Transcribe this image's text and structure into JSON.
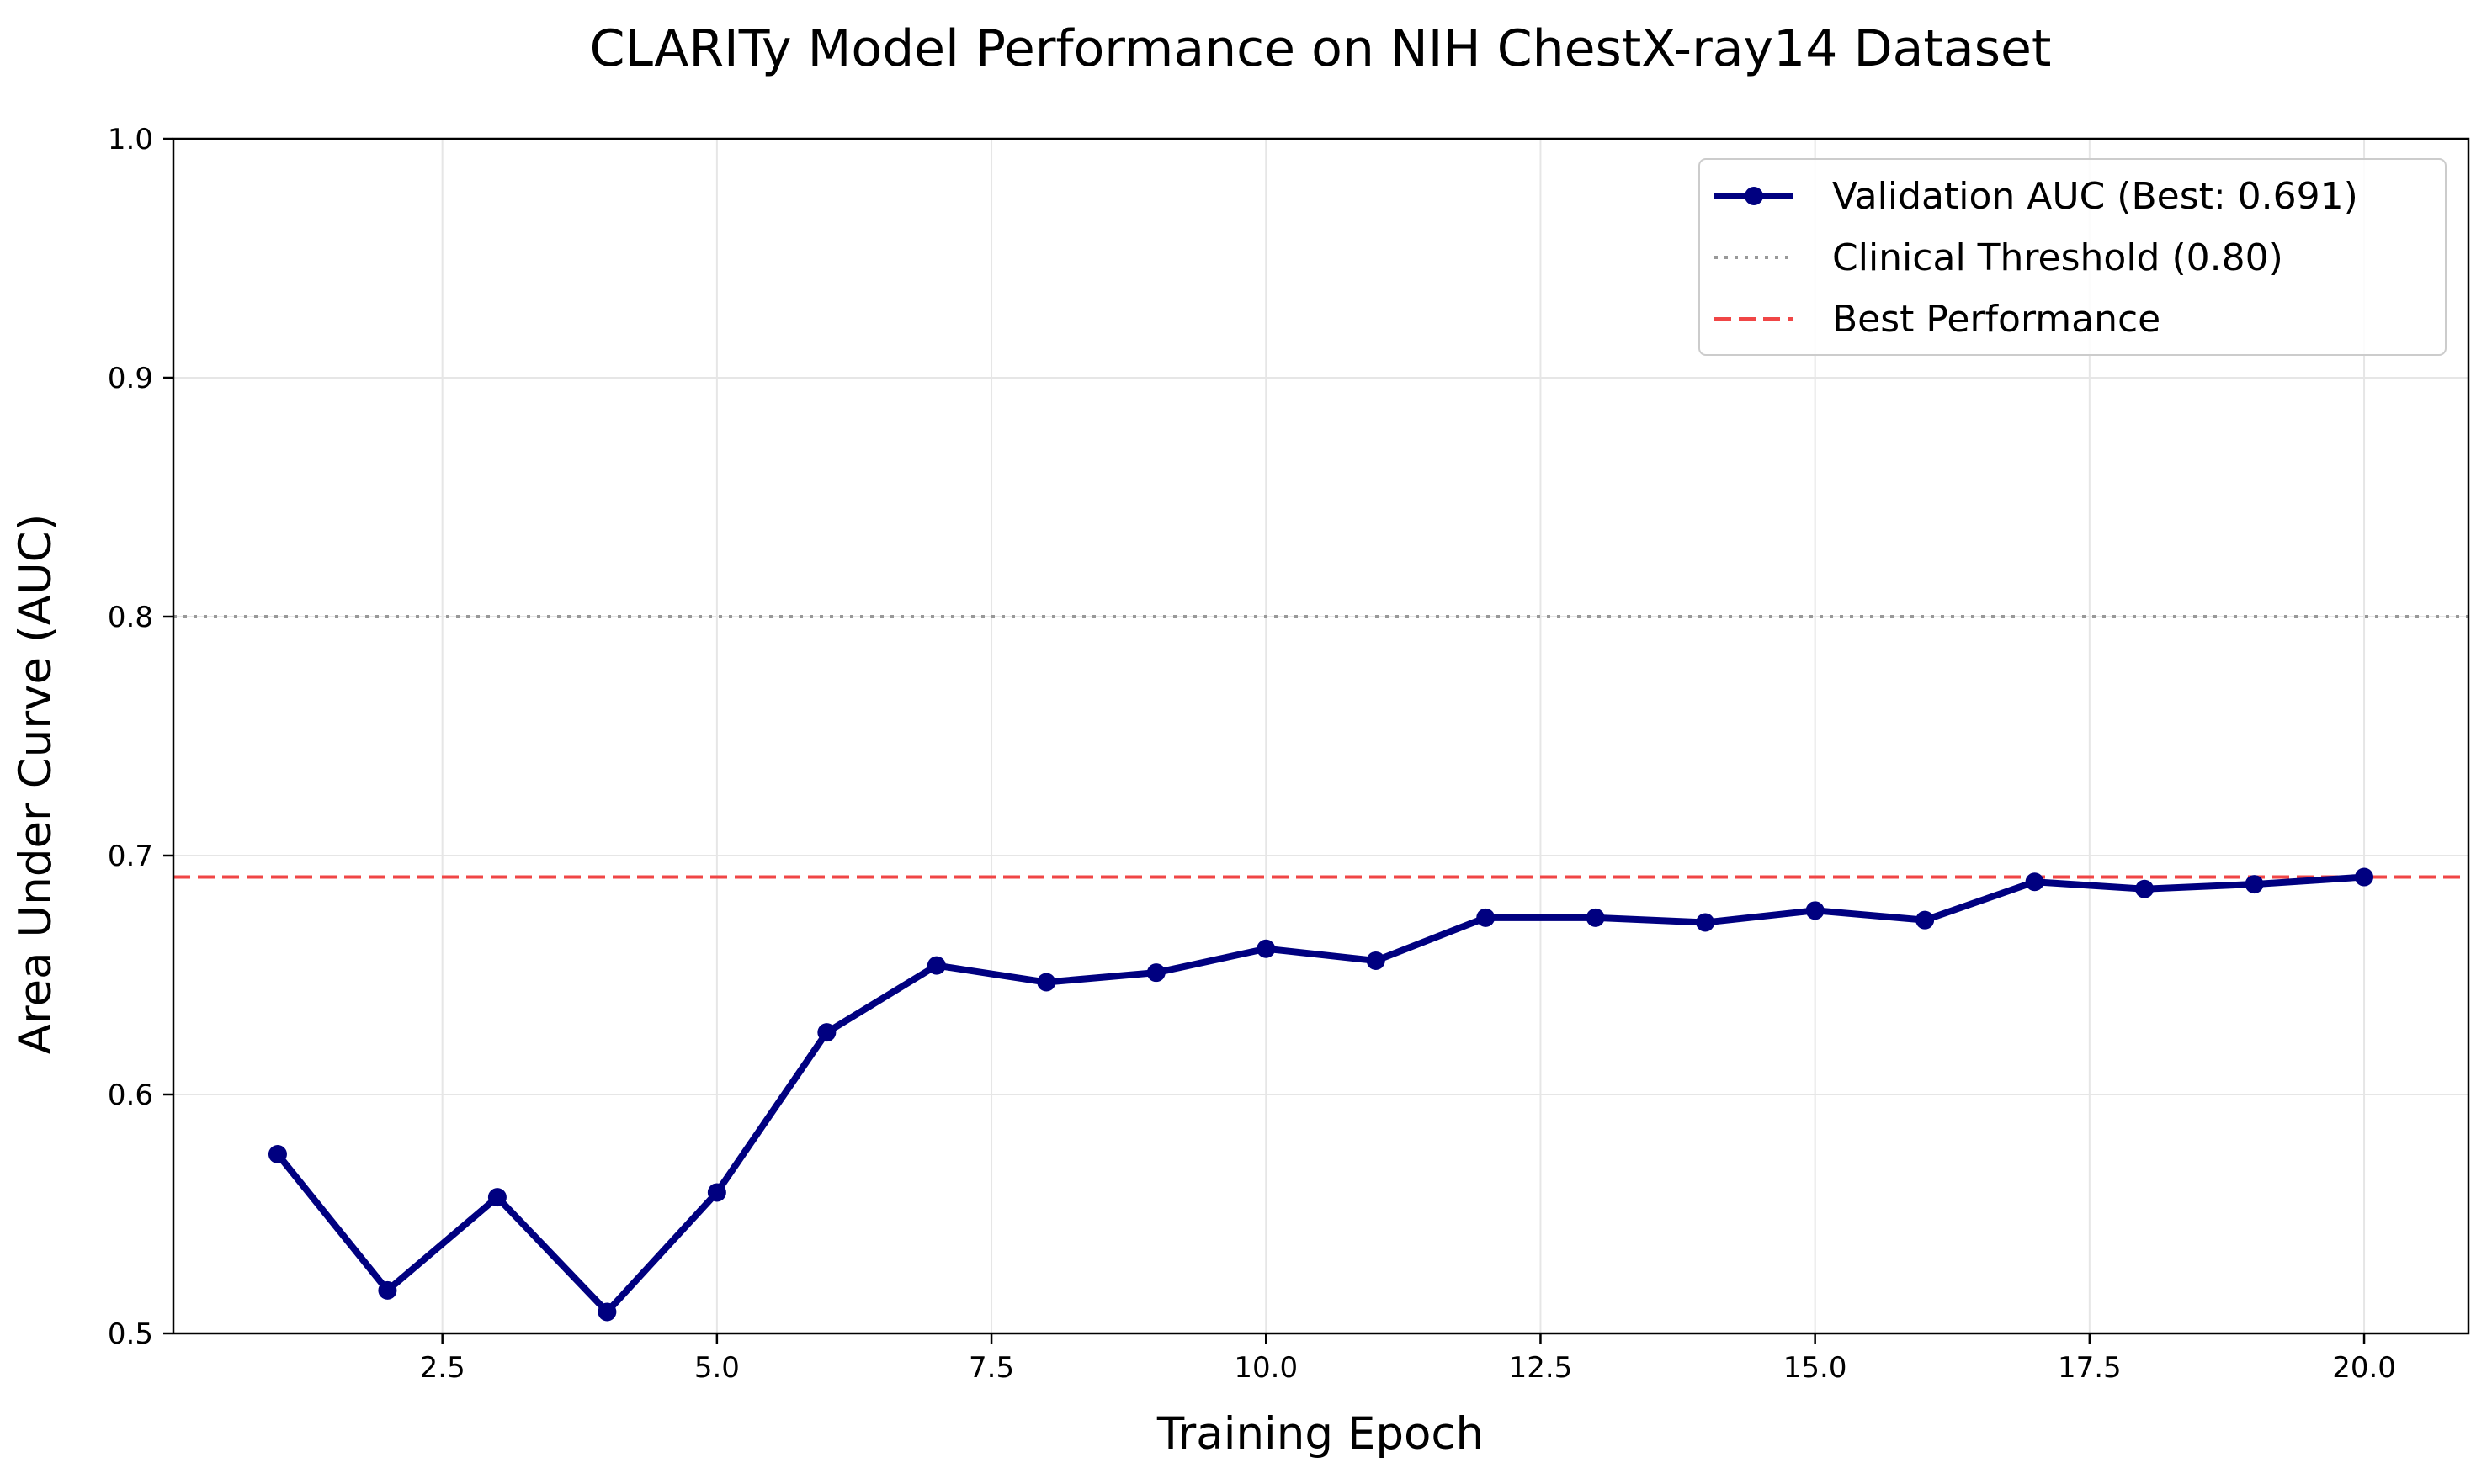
{
  "chart_data": {
    "type": "line",
    "title": "CLARITy Model Performance on NIH ChestX-ray14 Dataset",
    "xlabel": "Training Epoch",
    "ylabel": "Area Under Curve (AUC)",
    "xlim": [
      0.05,
      20.95
    ],
    "ylim": [
      0.5,
      1.0
    ],
    "xticks": [
      2.5,
      5.0,
      7.5,
      10.0,
      12.5,
      15.0,
      17.5,
      20.0
    ],
    "xtick_labels": [
      "2.5",
      "5.0",
      "7.5",
      "10.0",
      "12.5",
      "15.0",
      "17.5",
      "20.0"
    ],
    "yticks": [
      0.5,
      0.6,
      0.7,
      0.8,
      0.9,
      1.0
    ],
    "ytick_labels": [
      "0.5",
      "0.6",
      "0.7",
      "0.8",
      "0.9",
      "1.0"
    ],
    "grid": true,
    "legend_position": "top-right",
    "series": [
      {
        "name": "Validation AUC (Best: 0.691)",
        "color": "#000080",
        "style": "solid-with-markers",
        "x": [
          1,
          2,
          3,
          4,
          5,
          6,
          7,
          8,
          9,
          10,
          11,
          12,
          13,
          14,
          15,
          16,
          17,
          18,
          19,
          20
        ],
        "y": [
          0.575,
          0.518,
          0.557,
          0.509,
          0.559,
          0.626,
          0.654,
          0.647,
          0.651,
          0.661,
          0.656,
          0.674,
          0.674,
          0.672,
          0.677,
          0.673,
          0.689,
          0.686,
          0.688,
          0.691
        ]
      }
    ],
    "reference_lines": [
      {
        "name": "Clinical Threshold (0.80)",
        "y": 0.8,
        "color": "#999999",
        "style": "dotted"
      },
      {
        "name": "Best Performance",
        "y": 0.691,
        "color": "#f04646",
        "style": "dashed"
      }
    ]
  }
}
